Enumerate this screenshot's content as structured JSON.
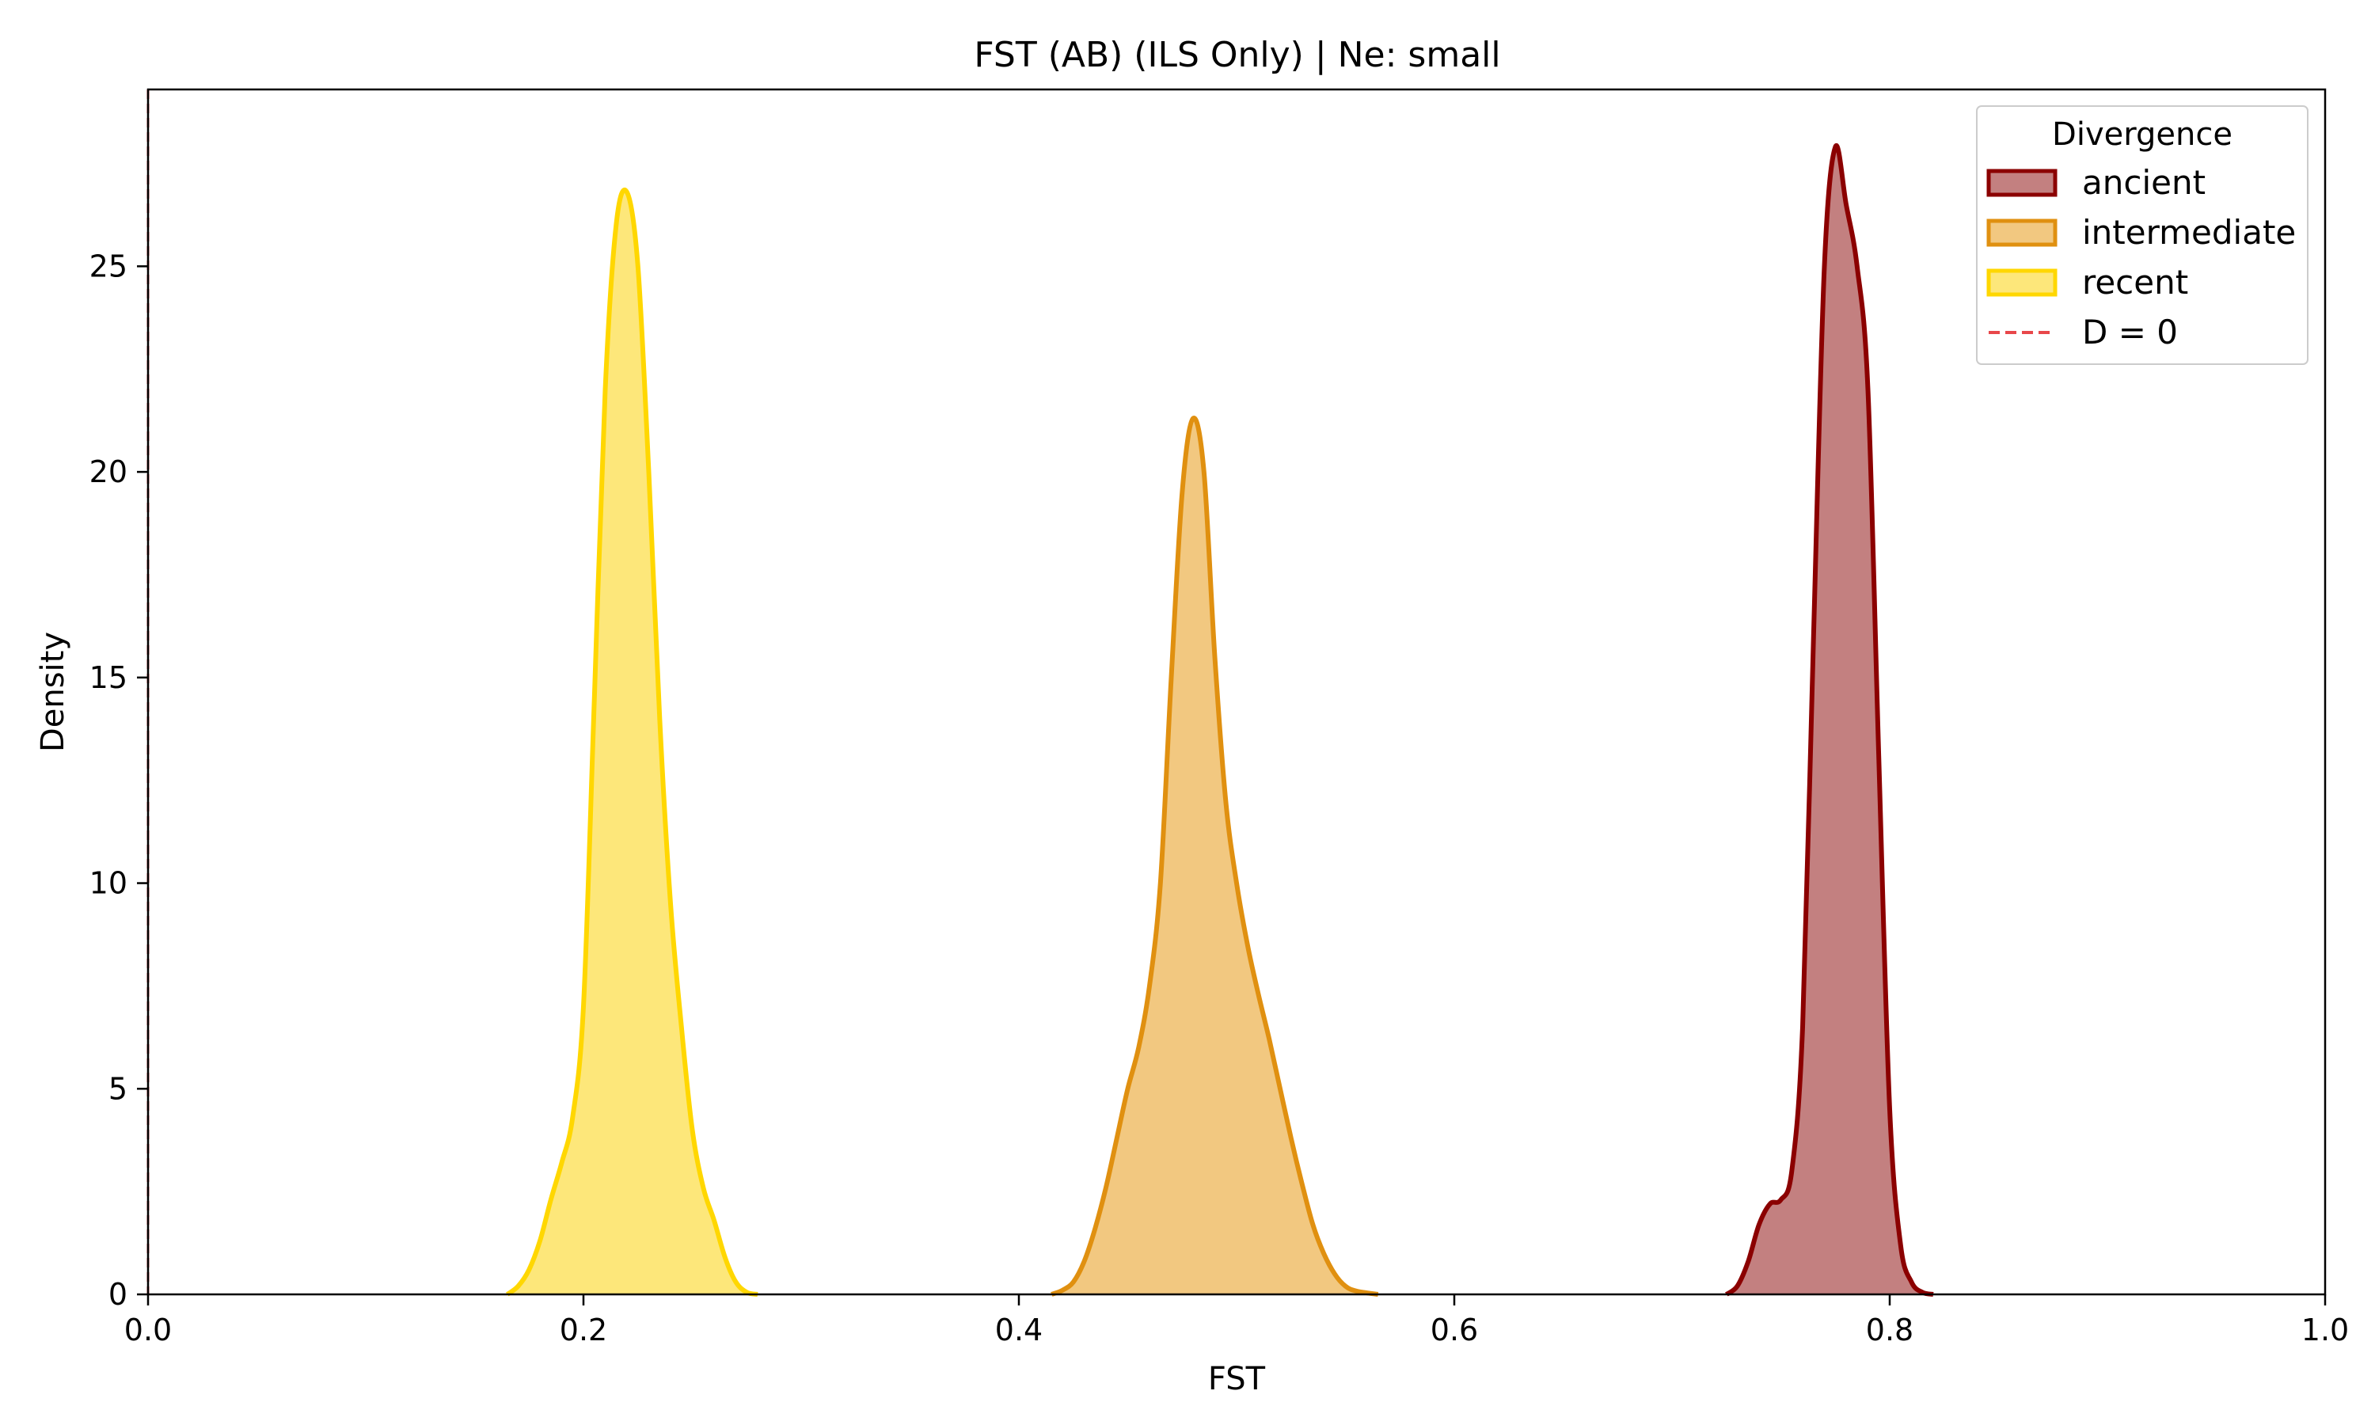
{
  "chart_data": {
    "type": "area",
    "title": "FST (AB) (ILS Only) | Ne: small",
    "xlabel": "FST",
    "ylabel": "Density",
    "xlim": [
      0,
      1.0
    ],
    "ylim": [
      0,
      29.3
    ],
    "xticks": [
      0.0,
      0.2,
      0.4,
      0.6,
      0.8,
      1.0
    ],
    "xtick_labels": [
      "0.0",
      "0.2",
      "0.4",
      "0.6",
      "0.8",
      "1.0"
    ],
    "yticks": [
      0,
      5,
      10,
      15,
      20,
      25
    ],
    "ytick_labels": [
      "0",
      "5",
      "10",
      "15",
      "20",
      "25"
    ],
    "grid": false,
    "legend": {
      "title": "Divergence",
      "placement": "top-right",
      "entries": [
        "ancient",
        "intermediate",
        "recent",
        "D = 0"
      ]
    },
    "reference_line": {
      "name": "D = 0",
      "x": 0,
      "color": "#e8474a",
      "style": "dashed"
    },
    "series": [
      {
        "name": "ancient",
        "line_color": "#8b0000",
        "fill_color": "#c38080",
        "points": [
          [
            0.725,
            0
          ],
          [
            0.73,
            0.2
          ],
          [
            0.735,
            0.8
          ],
          [
            0.74,
            1.7
          ],
          [
            0.745,
            2.2
          ],
          [
            0.75,
            2.3
          ],
          [
            0.755,
            3.0
          ],
          [
            0.76,
            6.5
          ],
          [
            0.765,
            16.0
          ],
          [
            0.77,
            25.0
          ],
          [
            0.775,
            27.9
          ],
          [
            0.78,
            26.5
          ],
          [
            0.785,
            25.0
          ],
          [
            0.79,
            22.0
          ],
          [
            0.795,
            13.0
          ],
          [
            0.8,
            4.5
          ],
          [
            0.805,
            1.2
          ],
          [
            0.81,
            0.3
          ],
          [
            0.815,
            0.05
          ],
          [
            0.82,
            0
          ]
        ]
      },
      {
        "name": "intermediate",
        "line_color": "#e09010",
        "fill_color": "#f2c880",
        "points": [
          [
            0.415,
            0
          ],
          [
            0.42,
            0.1
          ],
          [
            0.425,
            0.3
          ],
          [
            0.43,
            0.8
          ],
          [
            0.435,
            1.6
          ],
          [
            0.44,
            2.6
          ],
          [
            0.445,
            3.8
          ],
          [
            0.45,
            5.0
          ],
          [
            0.455,
            6.0
          ],
          [
            0.46,
            7.5
          ],
          [
            0.465,
            10.0
          ],
          [
            0.47,
            15.0
          ],
          [
            0.475,
            19.5
          ],
          [
            0.48,
            21.3
          ],
          [
            0.485,
            20.0
          ],
          [
            0.49,
            15.5
          ],
          [
            0.495,
            12.0
          ],
          [
            0.5,
            10.0
          ],
          [
            0.505,
            8.5
          ],
          [
            0.51,
            7.3
          ],
          [
            0.515,
            6.2
          ],
          [
            0.52,
            5.0
          ],
          [
            0.525,
            3.8
          ],
          [
            0.53,
            2.7
          ],
          [
            0.535,
            1.7
          ],
          [
            0.54,
            1.0
          ],
          [
            0.545,
            0.5
          ],
          [
            0.55,
            0.2
          ],
          [
            0.555,
            0.08
          ],
          [
            0.565,
            0
          ]
        ]
      },
      {
        "name": "recent",
        "line_color": "#ffd700",
        "fill_color": "#fde77a",
        "points": [
          [
            0.165,
            0
          ],
          [
            0.17,
            0.2
          ],
          [
            0.175,
            0.6
          ],
          [
            0.18,
            1.3
          ],
          [
            0.185,
            2.3
          ],
          [
            0.19,
            3.2
          ],
          [
            0.195,
            4.3
          ],
          [
            0.2,
            7.0
          ],
          [
            0.205,
            14.5
          ],
          [
            0.21,
            22.0
          ],
          [
            0.215,
            26.0
          ],
          [
            0.22,
            26.8
          ],
          [
            0.225,
            25.0
          ],
          [
            0.23,
            20.0
          ],
          [
            0.235,
            14.0
          ],
          [
            0.24,
            9.5
          ],
          [
            0.245,
            6.5
          ],
          [
            0.25,
            4.0
          ],
          [
            0.255,
            2.6
          ],
          [
            0.26,
            1.8
          ],
          [
            0.265,
            0.9
          ],
          [
            0.27,
            0.3
          ],
          [
            0.275,
            0.05
          ],
          [
            0.28,
            0
          ]
        ]
      }
    ]
  }
}
